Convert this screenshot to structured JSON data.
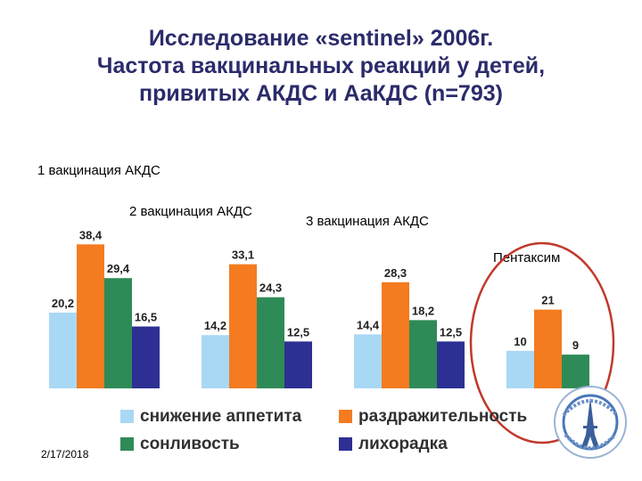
{
  "title_lines": [
    "Исследование «sentinel» 2006г.",
    "Частота вакцинальных реакций у детей,",
    "привитых АКДС и АаКДС (n=793)"
  ],
  "footer_date": "2/17/2018",
  "colors": {
    "appetite": "#a9d8f4",
    "irritability": "#f47b20",
    "drowsiness": "#2e8b57",
    "fever": "#2d3092",
    "highlight_ellipse": "#c0392b"
  },
  "chart_data": {
    "type": "bar",
    "categories": [
      "1 вакцинация АКДС",
      "2 вакцинация АКДС",
      "3 вакцинация АКДС",
      "Пентаксим"
    ],
    "series": [
      {
        "name": "снижение аппетита",
        "values": [
          20.2,
          14.2,
          14.4,
          10
        ]
      },
      {
        "name": "раздражительность",
        "values": [
          38.4,
          33.1,
          28.3,
          21
        ]
      },
      {
        "name": "сонливость",
        "values": [
          29.4,
          24.3,
          18.2,
          9
        ]
      },
      {
        "name": "лихорадка",
        "values": [
          16.5,
          12.5,
          12.5,
          null
        ]
      }
    ],
    "data_labels": [
      [
        "20,2",
        "38,4",
        "29,4",
        "16,5"
      ],
      [
        "14,2",
        "33,1",
        "24,3",
        "12,5"
      ],
      [
        "14,4",
        "28,3",
        "18,2",
        "12,5"
      ],
      [
        "10",
        "21",
        "9",
        ""
      ]
    ],
    "legend_position": "bottom",
    "grid": false
  }
}
